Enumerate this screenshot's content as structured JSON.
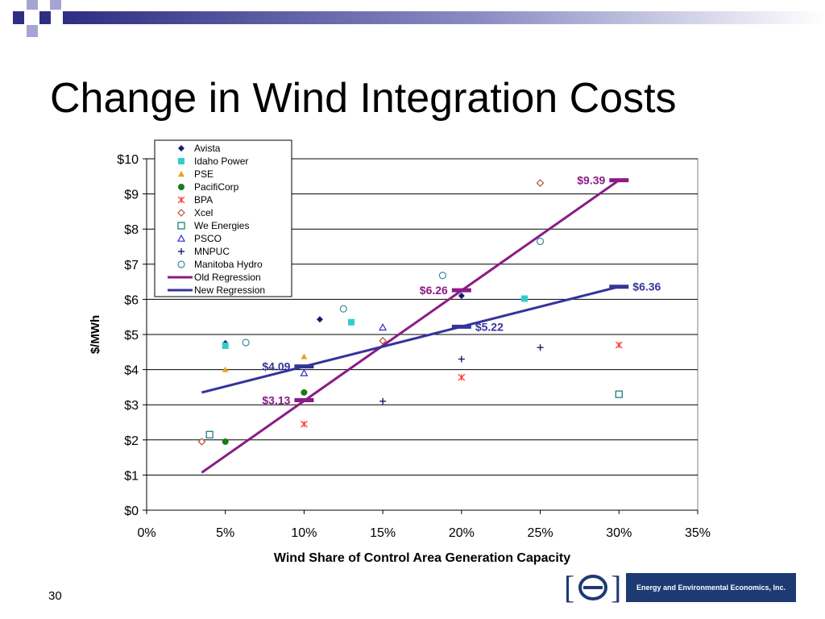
{
  "slide": {
    "title": "Change in Wind Integration Costs",
    "page_number": "30",
    "logo_text": "Energy and Environmental Economics, Inc."
  },
  "colors": {
    "deco_dark": "#2e2e83",
    "deco_light": "#a5a5d3",
    "old_regression": "#8b1b86",
    "new_regression": "#35349a",
    "logo_blue": "#1e3a73"
  },
  "chart_data": {
    "type": "scatter",
    "xlabel": "Wind Share of Control Area Generation Capacity",
    "ylabel": "$/MWh",
    "xlim": [
      0,
      0.35
    ],
    "ylim": [
      0,
      10
    ],
    "x_ticks": [
      {
        "value": 0,
        "label": "0%"
      },
      {
        "value": 0.05,
        "label": "5%"
      },
      {
        "value": 0.1,
        "label": "10%"
      },
      {
        "value": 0.15,
        "label": "15%"
      },
      {
        "value": 0.2,
        "label": "20%"
      },
      {
        "value": 0.25,
        "label": "25%"
      },
      {
        "value": 0.3,
        "label": "30%"
      },
      {
        "value": 0.35,
        "label": "35%"
      }
    ],
    "y_ticks": [
      {
        "value": 0,
        "label": "$0"
      },
      {
        "value": 1,
        "label": "$1"
      },
      {
        "value": 2,
        "label": "$2"
      },
      {
        "value": 3,
        "label": "$3"
      },
      {
        "value": 4,
        "label": "$4"
      },
      {
        "value": 5,
        "label": "$5"
      },
      {
        "value": 6,
        "label": "$6"
      },
      {
        "value": 7,
        "label": "$7"
      },
      {
        "value": 8,
        "label": "$8"
      },
      {
        "value": 9,
        "label": "$9"
      },
      {
        "value": 10,
        "label": "$10"
      }
    ],
    "grid": "horizontal",
    "legend_position": "top-left",
    "series": [
      {
        "name": "Avista",
        "marker": "diamond-filled",
        "color": "#1a1a6e",
        "points": [
          [
            0.05,
            4.75
          ],
          [
            0.11,
            5.43
          ],
          [
            0.2,
            6.1
          ]
        ]
      },
      {
        "name": "Idaho Power",
        "marker": "square-filled",
        "color": "#33cccc",
        "points": [
          [
            0.05,
            4.68
          ],
          [
            0.13,
            5.35
          ],
          [
            0.24,
            6.02
          ]
        ]
      },
      {
        "name": "PSE",
        "marker": "triangle-filled",
        "color": "#f0a020",
        "points": [
          [
            0.05,
            4.0
          ],
          [
            0.1,
            4.37
          ]
        ]
      },
      {
        "name": "PacifiCorp",
        "marker": "circle-filled",
        "color": "#1a7a1a",
        "points": [
          [
            0.05,
            1.95
          ],
          [
            0.1,
            3.35
          ]
        ]
      },
      {
        "name": "BPA",
        "marker": "asterisk",
        "color": "#ff3030",
        "points": [
          [
            0.1,
            2.45
          ],
          [
            0.2,
            3.78
          ],
          [
            0.3,
            4.7
          ]
        ]
      },
      {
        "name": "Xcel",
        "marker": "diamond-open",
        "color": "#b5523a",
        "points": [
          [
            0.035,
            1.95
          ],
          [
            0.15,
            4.82
          ],
          [
            0.25,
            9.31
          ]
        ]
      },
      {
        "name": "We Energies",
        "marker": "square-open",
        "color": "#1a8080",
        "points": [
          [
            0.04,
            2.15
          ],
          [
            0.3,
            3.3
          ]
        ]
      },
      {
        "name": "PSCO",
        "marker": "triangle-open",
        "color": "#3030cc",
        "points": [
          [
            0.1,
            3.9
          ],
          [
            0.15,
            5.2
          ]
        ]
      },
      {
        "name": "MNPUC",
        "marker": "plus",
        "color": "#1a1a6e",
        "points": [
          [
            0.15,
            3.1
          ],
          [
            0.2,
            4.3
          ],
          [
            0.25,
            4.63
          ]
        ]
      },
      {
        "name": "Manitoba Hydro",
        "marker": "circle-open",
        "color": "#3a8a9a",
        "points": [
          [
            0.063,
            4.77
          ],
          [
            0.125,
            5.73
          ],
          [
            0.188,
            6.68
          ],
          [
            0.25,
            7.65
          ]
        ]
      }
    ],
    "regressions": [
      {
        "name": "Old Regression",
        "color": "#8b1b86",
        "from": [
          0.035,
          1.07
        ],
        "to": [
          0.3,
          9.39
        ],
        "markers": [
          {
            "x": 0.1,
            "y": 3.13,
            "label": "$3.13",
            "side": "left"
          },
          {
            "x": 0.2,
            "y": 6.26,
            "label": "$6.26",
            "side": "left"
          },
          {
            "x": 0.3,
            "y": 9.39,
            "label": "$9.39",
            "side": "left"
          }
        ]
      },
      {
        "name": "New Regression",
        "color": "#35349a",
        "from": [
          0.035,
          3.35
        ],
        "to": [
          0.3,
          6.36
        ],
        "markers": [
          {
            "x": 0.1,
            "y": 4.09,
            "label": "$4.09",
            "side": "left"
          },
          {
            "x": 0.2,
            "y": 5.22,
            "label": "$5.22",
            "side": "right"
          },
          {
            "x": 0.3,
            "y": 6.36,
            "label": "$6.36",
            "side": "right"
          }
        ]
      }
    ]
  }
}
